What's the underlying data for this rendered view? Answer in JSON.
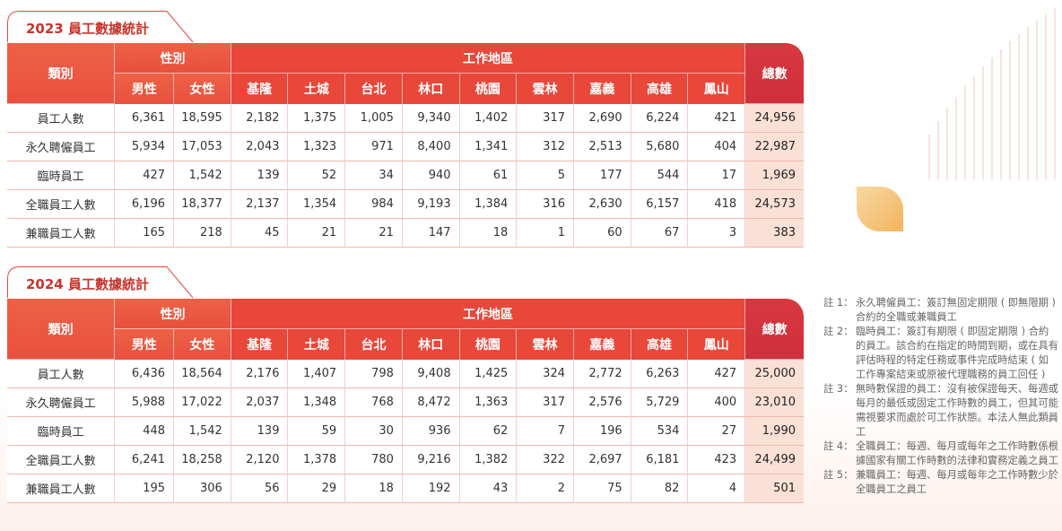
{
  "headers": {
    "category": "類別",
    "gender_group": "性別",
    "location_group": "工作地區",
    "total": "總數",
    "columns": [
      "男性",
      "女性",
      "基隆",
      "土城",
      "台北",
      "林口",
      "桃園",
      "雲林",
      "嘉義",
      "高雄",
      "鳳山"
    ]
  },
  "tables": [
    {
      "title": "2023 員工數據統計",
      "rows": [
        {
          "label": "員工人數",
          "values": [
            "6,361",
            "18,595",
            "2,182",
            "1,375",
            "1,005",
            "9,340",
            "1,402",
            "317",
            "2,690",
            "6,224",
            "421"
          ],
          "total": "24,956"
        },
        {
          "label": "永久聘僱員工",
          "values": [
            "5,934",
            "17,053",
            "2,043",
            "1,323",
            "971",
            "8,400",
            "1,341",
            "312",
            "2,513",
            "5,680",
            "404"
          ],
          "total": "22,987"
        },
        {
          "label": "臨時員工",
          "values": [
            "427",
            "1,542",
            "139",
            "52",
            "34",
            "940",
            "61",
            "5",
            "177",
            "544",
            "17"
          ],
          "total": "1,969"
        },
        {
          "label": "全職員工人數",
          "values": [
            "6,196",
            "18,377",
            "2,137",
            "1,354",
            "984",
            "9,193",
            "1,384",
            "316",
            "2,630",
            "6,157",
            "418"
          ],
          "total": "24,573"
        },
        {
          "label": "兼職員工人數",
          "values": [
            "165",
            "218",
            "45",
            "21",
            "21",
            "147",
            "18",
            "1",
            "60",
            "67",
            "3"
          ],
          "total": "383"
        }
      ]
    },
    {
      "title": "2024 員工數據統計",
      "rows": [
        {
          "label": "員工人數",
          "values": [
            "6,436",
            "18,564",
            "2,176",
            "1,407",
            "798",
            "9,408",
            "1,425",
            "324",
            "2,772",
            "6,263",
            "427"
          ],
          "total": "25,000"
        },
        {
          "label": "永久聘僱員工",
          "values": [
            "5,988",
            "17,022",
            "2,037",
            "1,348",
            "768",
            "8,472",
            "1,363",
            "317",
            "2,576",
            "5,729",
            "400"
          ],
          "total": "23,010"
        },
        {
          "label": "臨時員工",
          "values": [
            "448",
            "1,542",
            "139",
            "59",
            "30",
            "936",
            "62",
            "7",
            "196",
            "534",
            "27"
          ],
          "total": "1,990"
        },
        {
          "label": "全職員工人數",
          "values": [
            "6,241",
            "18,258",
            "2,120",
            "1,378",
            "780",
            "9,216",
            "1,382",
            "322",
            "2,697",
            "6,181",
            "423"
          ],
          "total": "24,499"
        },
        {
          "label": "兼職員工人數",
          "values": [
            "195",
            "306",
            "56",
            "29",
            "18",
            "192",
            "43",
            "2",
            "75",
            "82",
            "4"
          ],
          "total": "501"
        }
      ]
    }
  ],
  "notes": [
    {
      "num": "註 1：",
      "text": "永久聘僱員工：簽訂無固定期限 ( 即無限期 ) 合約的全職或兼職員工"
    },
    {
      "num": "註 2：",
      "text": "臨時員工：簽訂有期限 ( 即固定期限 ) 合約的員工。該合約在指定的時間到期，或在具有評估時程的特定任務或事件完成時結束 ( 如工作專案結束或原被代理職務的員工回任 )"
    },
    {
      "num": "註 3：",
      "text": "無時數保證的員工：沒有被保證每天、每週或每月的最低或固定工作時數的員工，但其可能需視要求而處於可工作狀態。本法人無此類員工"
    },
    {
      "num": "註 4：",
      "text": "全職員工：每週、每月或每年之工作時數係根據國家有關工作時數的法律和實務定義之員工"
    },
    {
      "num": "註 5：",
      "text": "兼職員工：每週、每月或每年之工作時數少於全職員工之員工"
    }
  ],
  "colors": {
    "accent": "#e8473a",
    "title": "#c8342b",
    "total_cell": "#fbe0d6",
    "leaf": "#f3b45e"
  }
}
